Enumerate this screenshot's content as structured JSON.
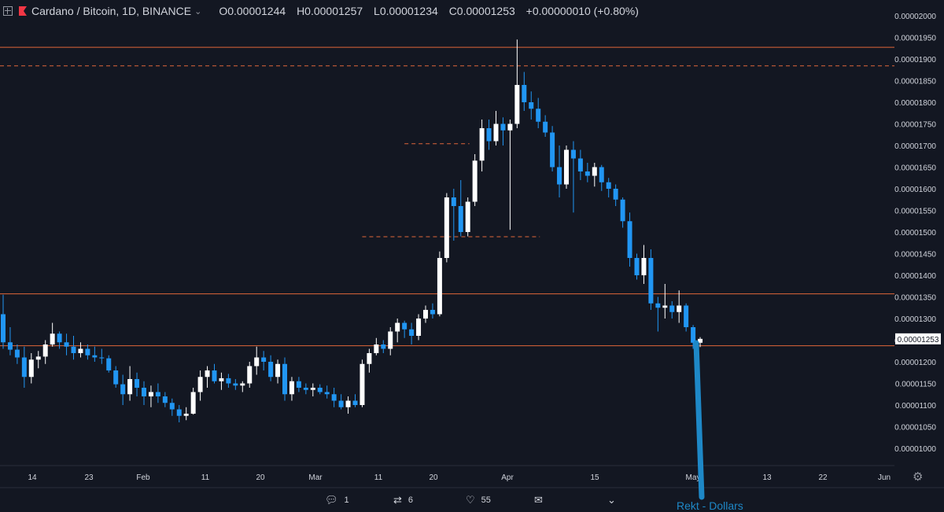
{
  "header": {
    "symbol": "Cardano / Bitcoin, 1D, BINANCE",
    "open": "O0.00001244",
    "high": "H0.00001257",
    "low": "L0.00001234",
    "close": "C0.00001253",
    "change": "+0.00000010 (+0.80%)"
  },
  "price_tag": "0.00001253",
  "annotation": "Rekt - Dollars",
  "social": {
    "replies": "1",
    "retweets": "6",
    "likes": "55"
  },
  "colors": {
    "background": "#131722",
    "up": "#ffffff",
    "down": "#2196f3",
    "level": "#e0673a",
    "arrow": "#1e88c7"
  },
  "chart_data": {
    "type": "candlestick",
    "y_ticks": [
      "0.00002000",
      "0.00001950",
      "0.00001900",
      "0.00001850",
      "0.00001800",
      "0.00001750",
      "0.00001700",
      "0.00001650",
      "0.00001600",
      "0.00001550",
      "0.00001500",
      "0.00001450",
      "0.00001400",
      "0.00001350",
      "0.00001300",
      "0.00001250",
      "0.00001200",
      "0.00001150",
      "0.00001100",
      "0.00001050",
      "0.00001000"
    ],
    "x_ticks": [
      "14",
      "23",
      "Feb",
      "11",
      "20",
      "Mar",
      "11",
      "20",
      "Apr",
      "15",
      "May",
      "13",
      "22",
      "Jun"
    ],
    "ylim": [
      9.8e-06,
      2.02e-05
    ],
    "levels": [
      {
        "value": 1.927e-05,
        "style": "solid"
      },
      {
        "value": 1.884e-05,
        "style": "dashed"
      },
      {
        "value": 1.357e-05,
        "style": "solid"
      },
      {
        "value": 1.237e-05,
        "style": "solid"
      }
    ],
    "partial_levels": [
      {
        "value": 1.704e-05,
        "from": 57,
        "to": 66
      },
      {
        "value": 1.489e-05,
        "from": 51,
        "to": 76
      }
    ],
    "candles": [
      [
        1310,
        1355,
        1230,
        1245
      ],
      [
        1245,
        1280,
        1215,
        1228
      ],
      [
        1228,
        1240,
        1195,
        1210
      ],
      [
        1210,
        1235,
        1140,
        1165
      ],
      [
        1165,
        1220,
        1150,
        1205
      ],
      [
        1205,
        1225,
        1185,
        1212
      ],
      [
        1212,
        1250,
        1195,
        1240
      ],
      [
        1240,
        1290,
        1235,
        1265
      ],
      [
        1265,
        1270,
        1230,
        1245
      ],
      [
        1245,
        1265,
        1215,
        1235
      ],
      [
        1235,
        1260,
        1205,
        1220
      ],
      [
        1220,
        1245,
        1210,
        1230
      ],
      [
        1230,
        1240,
        1205,
        1215
      ],
      [
        1215,
        1235,
        1200,
        1210
      ],
      [
        1210,
        1230,
        1195,
        1208
      ],
      [
        1208,
        1215,
        1175,
        1180
      ],
      [
        1180,
        1190,
        1140,
        1148
      ],
      [
        1148,
        1170,
        1100,
        1125
      ],
      [
        1125,
        1190,
        1110,
        1160
      ],
      [
        1160,
        1175,
        1120,
        1140
      ],
      [
        1140,
        1155,
        1100,
        1120
      ],
      [
        1120,
        1145,
        1095,
        1130
      ],
      [
        1130,
        1150,
        1105,
        1120
      ],
      [
        1120,
        1130,
        1095,
        1105
      ],
      [
        1105,
        1115,
        1075,
        1090
      ],
      [
        1090,
        1100,
        1060,
        1075
      ],
      [
        1075,
        1095,
        1065,
        1080
      ],
      [
        1080,
        1140,
        1078,
        1130
      ],
      [
        1130,
        1180,
        1110,
        1165
      ],
      [
        1165,
        1190,
        1140,
        1180
      ],
      [
        1180,
        1195,
        1150,
        1155
      ],
      [
        1155,
        1175,
        1135,
        1162
      ],
      [
        1162,
        1172,
        1140,
        1150
      ],
      [
        1150,
        1160,
        1135,
        1145
      ],
      [
        1145,
        1155,
        1130,
        1150
      ],
      [
        1150,
        1200,
        1140,
        1190
      ],
      [
        1190,
        1235,
        1170,
        1210
      ],
      [
        1210,
        1225,
        1180,
        1200
      ],
      [
        1200,
        1215,
        1155,
        1165
      ],
      [
        1165,
        1205,
        1150,
        1195
      ],
      [
        1195,
        1210,
        1110,
        1125
      ],
      [
        1125,
        1165,
        1110,
        1155
      ],
      [
        1155,
        1165,
        1130,
        1140
      ],
      [
        1140,
        1150,
        1125,
        1135
      ],
      [
        1135,
        1150,
        1120,
        1140
      ],
      [
        1140,
        1148,
        1125,
        1130
      ],
      [
        1130,
        1145,
        1115,
        1125
      ],
      [
        1125,
        1140,
        1095,
        1110
      ],
      [
        1110,
        1125,
        1090,
        1095
      ],
      [
        1095,
        1120,
        1080,
        1110
      ],
      [
        1110,
        1125,
        1095,
        1100
      ],
      [
        1100,
        1205,
        1095,
        1195
      ],
      [
        1195,
        1230,
        1175,
        1220
      ],
      [
        1220,
        1255,
        1215,
        1240
      ],
      [
        1240,
        1250,
        1220,
        1230
      ],
      [
        1230,
        1280,
        1215,
        1270
      ],
      [
        1270,
        1300,
        1245,
        1290
      ],
      [
        1290,
        1295,
        1255,
        1275
      ],
      [
        1275,
        1290,
        1240,
        1260
      ],
      [
        1260,
        1310,
        1250,
        1300
      ],
      [
        1300,
        1330,
        1290,
        1320
      ],
      [
        1320,
        1335,
        1300,
        1310
      ],
      [
        1310,
        1455,
        1305,
        1440
      ],
      [
        1440,
        1590,
        1430,
        1580
      ],
      [
        1580,
        1600,
        1480,
        1560
      ],
      [
        1560,
        1620,
        1490,
        1500
      ],
      [
        1500,
        1580,
        1490,
        1570
      ],
      [
        1570,
        1680,
        1560,
        1665
      ],
      [
        1665,
        1760,
        1640,
        1740
      ],
      [
        1740,
        1760,
        1690,
        1710
      ],
      [
        1710,
        1780,
        1700,
        1750
      ],
      [
        1750,
        1765,
        1700,
        1735
      ],
      [
        1735,
        1760,
        1505,
        1750
      ],
      [
        1750,
        1945,
        1740,
        1840
      ],
      [
        1840,
        1870,
        1780,
        1800
      ],
      [
        1800,
        1825,
        1760,
        1785
      ],
      [
        1785,
        1810,
        1740,
        1755
      ],
      [
        1755,
        1770,
        1720,
        1730
      ],
      [
        1730,
        1745,
        1640,
        1650
      ],
      [
        1650,
        1700,
        1580,
        1610
      ],
      [
        1610,
        1700,
        1600,
        1690
      ],
      [
        1690,
        1710,
        1545,
        1670
      ],
      [
        1670,
        1690,
        1620,
        1640
      ],
      [
        1640,
        1660,
        1615,
        1630
      ],
      [
        1630,
        1660,
        1605,
        1650
      ],
      [
        1650,
        1655,
        1595,
        1615
      ],
      [
        1615,
        1625,
        1580,
        1600
      ],
      [
        1600,
        1610,
        1560,
        1575
      ],
      [
        1575,
        1580,
        1510,
        1525
      ],
      [
        1525,
        1545,
        1420,
        1440
      ],
      [
        1440,
        1450,
        1390,
        1400
      ],
      [
        1400,
        1470,
        1380,
        1440
      ],
      [
        1440,
        1460,
        1320,
        1335
      ],
      [
        1335,
        1350,
        1270,
        1325
      ],
      [
        1325,
        1380,
        1300,
        1330
      ],
      [
        1330,
        1340,
        1300,
        1315
      ],
      [
        1315,
        1365,
        1290,
        1330
      ],
      [
        1330,
        1335,
        1270,
        1280
      ],
      [
        1280,
        1285,
        1230,
        1244
      ],
      [
        1244,
        1257,
        1234,
        1253
      ]
    ]
  }
}
